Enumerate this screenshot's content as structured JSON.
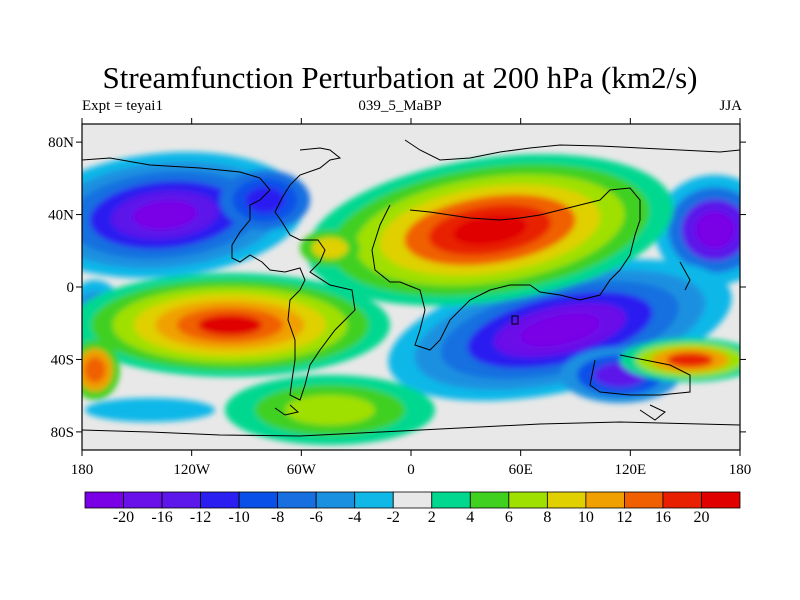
{
  "title": "Streamfunction Perturbation at 200 hPa (km2/s)",
  "left_string": "Expt = teyai1",
  "center_string": "039_5_MaBP",
  "right_string": "JJA",
  "map": {
    "lon_range": [
      -180,
      180
    ],
    "lat_range": [
      -90,
      90
    ],
    "lat_ticks": [
      "80N",
      "40N",
      "0",
      "40S",
      "80S"
    ],
    "lon_ticks": [
      "180",
      "120W",
      "60W",
      "0",
      "60E",
      "120E",
      "180"
    ]
  },
  "colorbar": {
    "labels": [
      "-20",
      "-16",
      "-12",
      "-10",
      "-8",
      "-6",
      "-4",
      "-2",
      "2",
      "4",
      "6",
      "8",
      "10",
      "12",
      "16",
      "20"
    ],
    "colors": [
      "#7a00e6",
      "#6a10e8",
      "#5c18ea",
      "#2a1ff0",
      "#0a50e8",
      "#1870e0",
      "#1a90e0",
      "#10b8e8",
      "#e8e8e8",
      "#00d890",
      "#40d020",
      "#a0e000",
      "#e0d000",
      "#f0a000",
      "#f06000",
      "#e82000",
      "#e00000"
    ]
  }
}
